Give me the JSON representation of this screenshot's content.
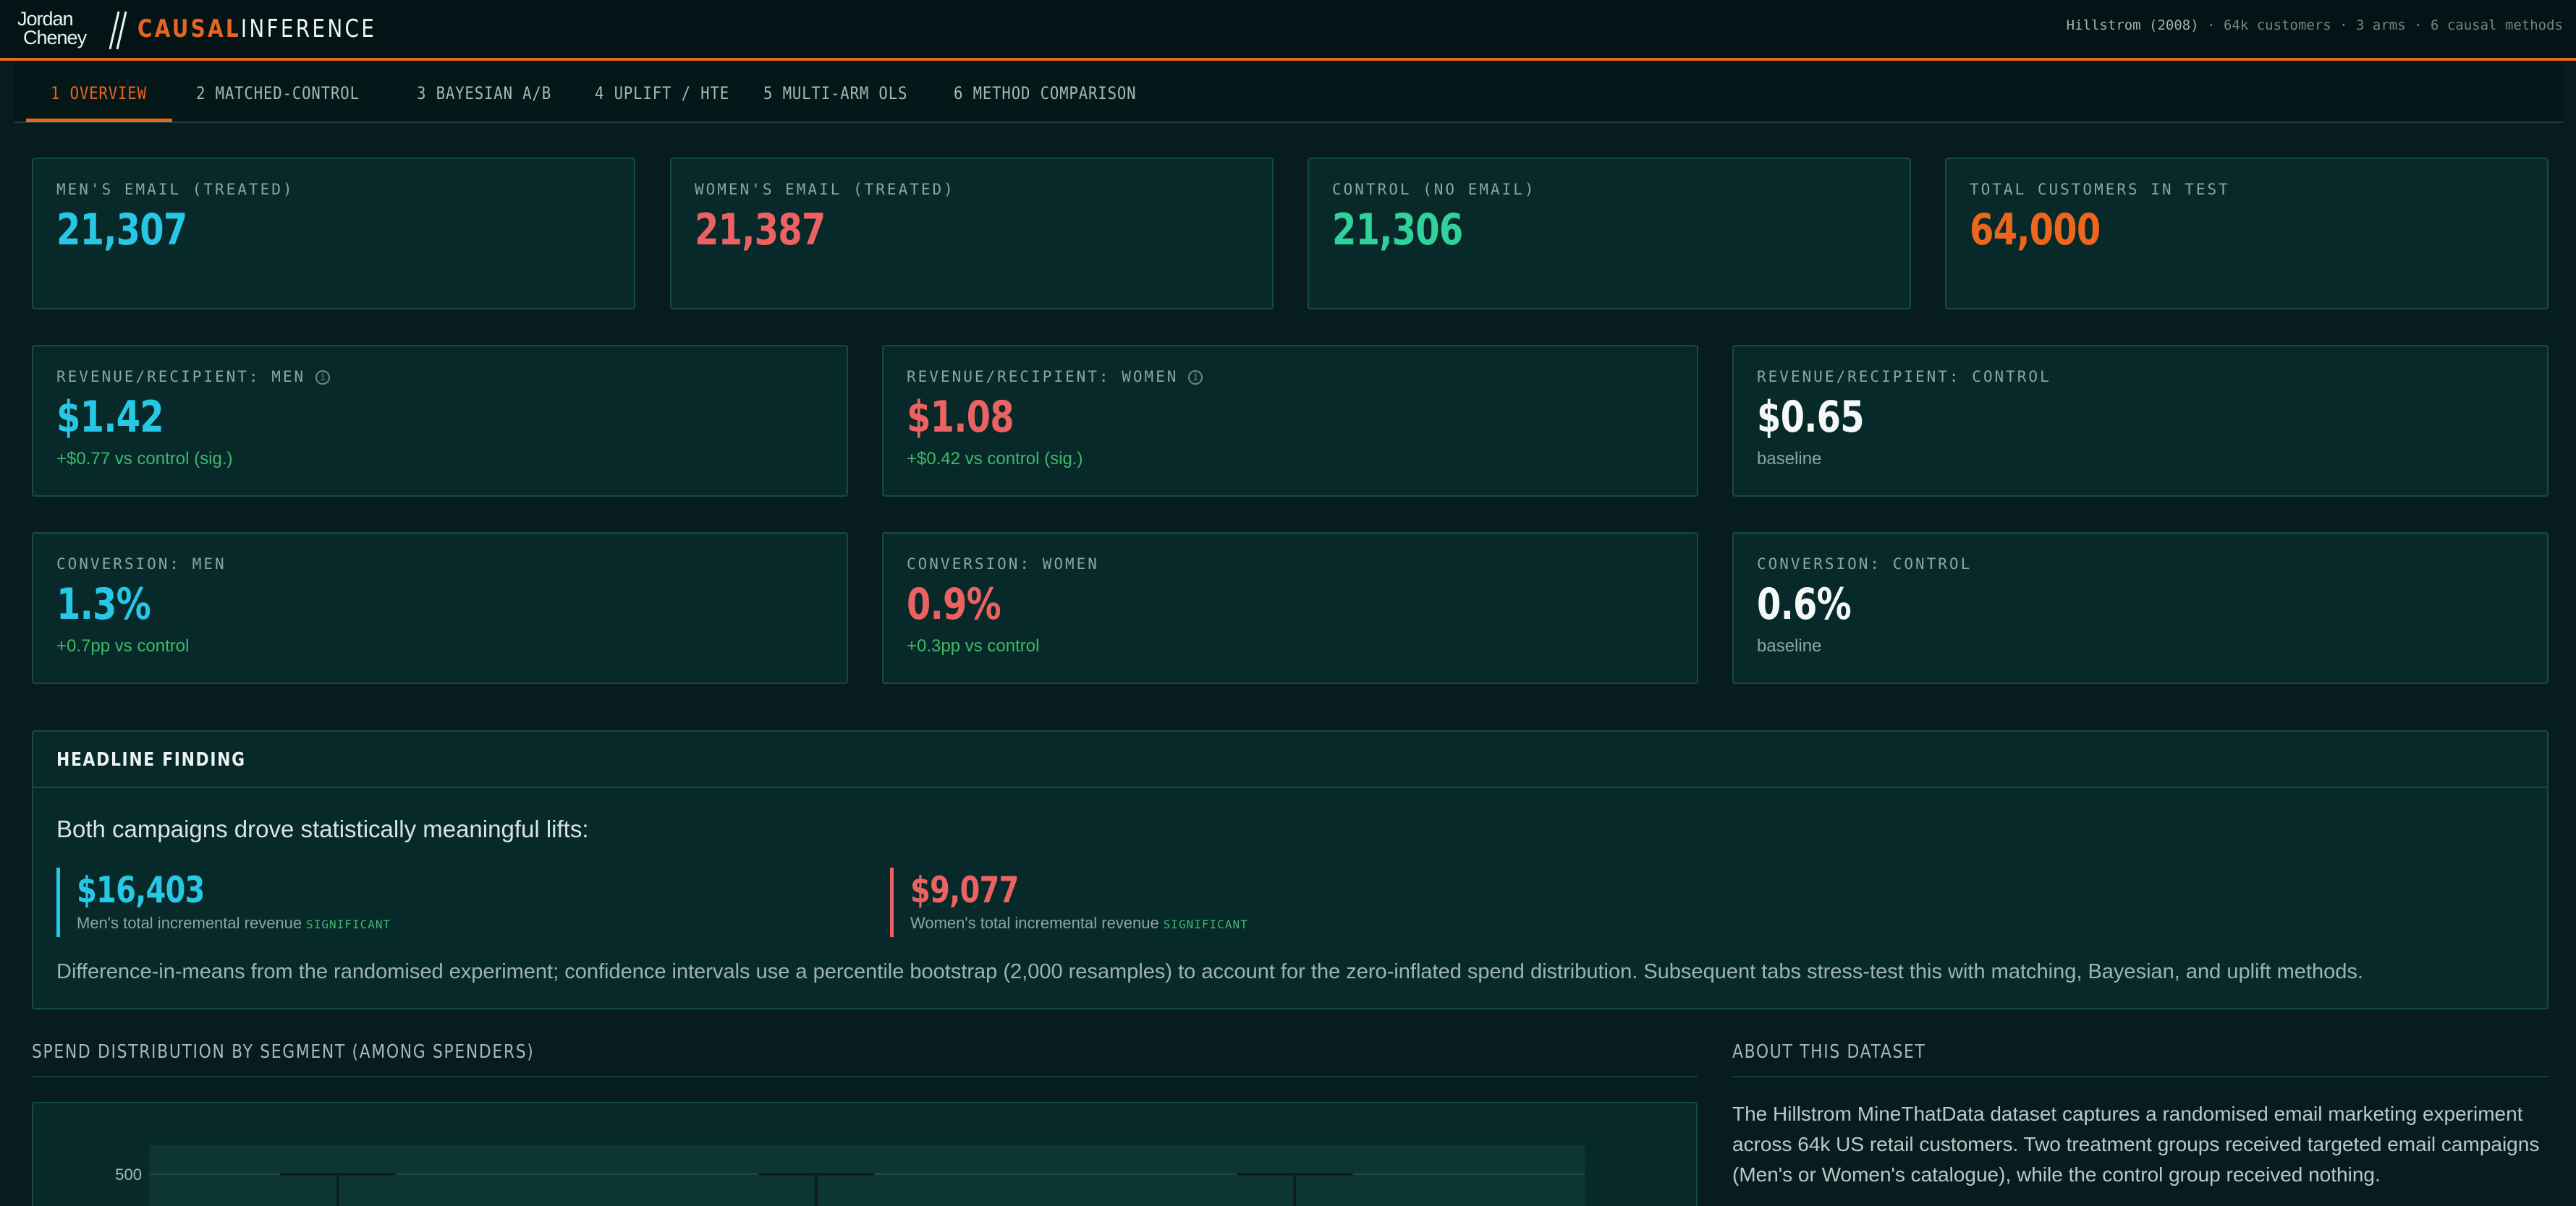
{
  "header": {
    "logo_line1": "Jordan",
    "logo_line2": "Cheney",
    "brand_accent": "CAUSAL",
    "brand_rest": "INFERENCE",
    "dataset_name": "Hillstrom (2008)",
    "dataset_rest": "· 64k customers · 3 arms · 6 causal methods"
  },
  "tabs": [
    {
      "label": "1 OVERVIEW"
    },
    {
      "label": "2 MATCHED-CONTROL"
    },
    {
      "label": "3 BAYESIAN A/B"
    },
    {
      "label": "4 UPLIFT / HTE"
    },
    {
      "label": "5 MULTI-ARM OLS"
    },
    {
      "label": "6 METHOD COMPARISON"
    }
  ],
  "counts": [
    {
      "label": "MEN'S EMAIL (TREATED)",
      "value": "21,307"
    },
    {
      "label": "WOMEN'S EMAIL (TREATED)",
      "value": "21,387"
    },
    {
      "label": "CONTROL (NO EMAIL)",
      "value": "21,306"
    },
    {
      "label": "TOTAL CUSTOMERS IN TEST",
      "value": "64,000"
    }
  ],
  "revenue": [
    {
      "label": "REVENUE/RECIPIENT: MEN",
      "value": "$1.42",
      "sub": "+$0.77 vs control (sig.)"
    },
    {
      "label": "REVENUE/RECIPIENT: WOMEN",
      "value": "$1.08",
      "sub": "+$0.42 vs control (sig.)"
    },
    {
      "label": "REVENUE/RECIPIENT: CONTROL",
      "value": "$0.65",
      "sub": "baseline"
    }
  ],
  "conversion": [
    {
      "label": "CONVERSION: MEN",
      "value": "1.3%",
      "sub": "+0.7pp vs control"
    },
    {
      "label": "CONVERSION: WOMEN",
      "value": "0.9%",
      "sub": "+0.3pp vs control"
    },
    {
      "label": "CONVERSION: CONTROL",
      "value": "0.6%",
      "sub": "baseline"
    }
  ],
  "info_glyph": "i",
  "headline": {
    "title": "HEADLINE FINDING",
    "lead": "Both campaigns drove statistically meaningful lifts:",
    "stats": [
      {
        "value": "$16,403",
        "caption": "Men's total incremental revenue",
        "badge": "SIGNIFICANT"
      },
      {
        "value": "$9,077",
        "caption": "Women's total incremental revenue",
        "badge": "SIGNIFICANT"
      }
    ],
    "note": "Difference-in-means from the randomised experiment; confidence intervals use a percentile bootstrap (2,000 resamples) to account for the zero-inflated spend distribution. Subsequent tabs stress-test this with matching, Bayesian, and uplift methods."
  },
  "spend_section": {
    "title": "SPEND DISTRIBUTION BY SEGMENT (AMONG SPENDERS)"
  },
  "chart_data": {
    "type": "box",
    "title": "SPEND DISTRIBUTION BY SEGMENT (AMONG SPENDERS)",
    "y_ticks": [
      500
    ],
    "series_count": 3,
    "colors": {
      "plot_bg": "#0d3533",
      "whisker": "#0a1a1a"
    }
  },
  "about": {
    "title": "ABOUT THIS DATASET",
    "text": "The Hillstrom MineThatData dataset captures a randomised email marketing experiment across 64k US retail customers. Two treatment groups received targeted email campaigns (Men's or Women's catalogue), while the control group received nothing."
  },
  "colors": {
    "accent": "#e8651f",
    "men": "#27c7e6",
    "women": "#ec6262",
    "control": "#2fd39a",
    "positive": "#3fb86a"
  }
}
